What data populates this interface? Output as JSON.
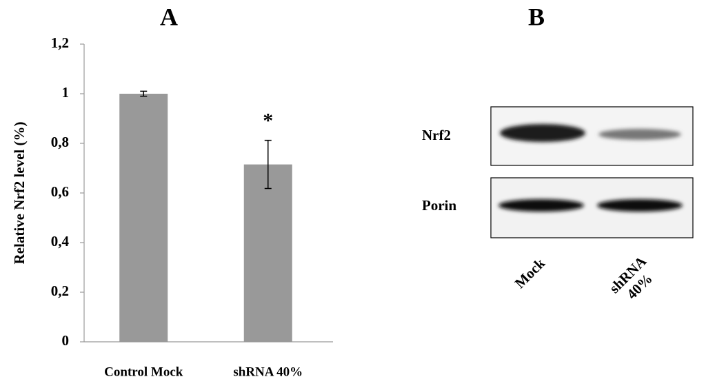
{
  "chart_data": {
    "type": "bar",
    "title": "A",
    "y_label": "Relative Nrf2 level (%)",
    "categories": [
      "Control Mock",
      "shRNA 40%"
    ],
    "values": [
      1.0,
      0.715
    ],
    "errors": [
      0.01,
      0.097
    ],
    "annotations": [
      null,
      "*"
    ],
    "color": "#999999",
    "ylim": [
      0,
      1.2
    ],
    "yticks": [
      0,
      {
        "value": 0.2,
        "label": "0,2"
      },
      {
        "value": 0.4,
        "label": "0,4"
      },
      {
        "value": 0.6,
        "label": "0,6"
      },
      {
        "value": 0.8,
        "label": "0,8"
      },
      1,
      {
        "value": 1.2,
        "label": "1,2"
      }
    ],
    "grid": false
  },
  "blot": {
    "title": "B",
    "rows": [
      "Nrf2",
      "Porin"
    ],
    "lanes": [
      "Mock",
      "shRNA 40%"
    ]
  }
}
